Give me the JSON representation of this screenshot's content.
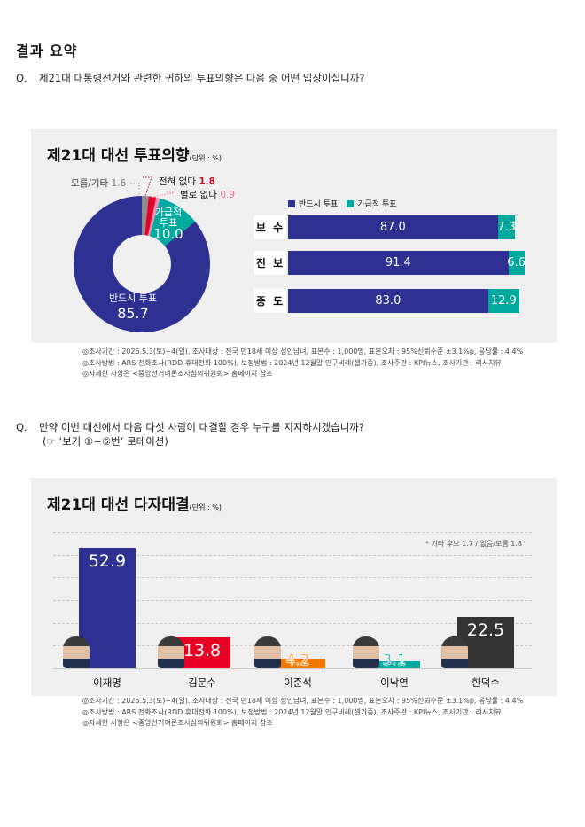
{
  "page_title": "결과 요약",
  "q1": {
    "num": "Q.",
    "text": "제21대 대통령선거와 관련한 귀하의 투표의향은 다음 중 어떤 입장이십니까?"
  },
  "q2": {
    "num": "Q.",
    "text": "만약 이번 대선에서 다음 다섯 사람이 대결할 경우 누구를 지지하시겠습니까?",
    "sub": "(☞ ‘보기 ①~⑤번’ 로테이션)"
  },
  "notes": [
    "◎조사기간 : 2025.5.3(토)~4(일), 조사대상 : 전국 만18세 이상 성인남녀, 표본수 : 1,000명, 표본오차 : 95%신뢰수준 ±3.1%p, 응답률 : 4.4%",
    "◎조사방법 : ARS 전화조사(RDD 휴대전화 100%), 보정방법 : 2024년 12월말 인구비례(셀가중), 조사주관 : KPI뉴스, 조사기관 : 리서치뷰",
    "◎자세한 사항은 <중앙선거여론조사심의위원회> 홈페이지 참조"
  ],
  "chart_data": [
    {
      "type": "pie",
      "title": "제21대 대선 투표의향",
      "unit": "(단위 : %)",
      "slices": [
        {
          "label": "모름/기타",
          "value": 1.6,
          "color": "#8c8c8c"
        },
        {
          "label": "전혀 없다",
          "value": 1.8,
          "color": "#e4002b"
        },
        {
          "label": "별로 없다",
          "value": 0.9,
          "color": "#f28fb1"
        },
        {
          "label": "가급적 투표",
          "value": 10.0,
          "color": "#00a99d"
        },
        {
          "label": "반드시 투표",
          "value": 85.7,
          "color": "#2e3192"
        }
      ]
    },
    {
      "type": "bar",
      "orientation": "horizontal",
      "stacked": true,
      "legend": "top",
      "categories": [
        "보 수",
        "진 보",
        "중 도"
      ],
      "series": [
        {
          "name": "반드시 투표",
          "values": [
            87.0,
            91.4,
            83.0
          ],
          "color": "#2e3192"
        },
        {
          "name": "가급적 투표",
          "values": [
            7.3,
            6.6,
            12.9
          ],
          "color": "#00a99d"
        }
      ]
    },
    {
      "type": "bar",
      "title": "제21대 대선 다자대결",
      "unit": "(단위 : %)",
      "categories": [
        "이재명",
        "김문수",
        "이준석",
        "이낙연",
        "한덕수"
      ],
      "values": [
        52.9,
        13.8,
        4.2,
        3.1,
        22.5
      ],
      "colors": [
        "#2e3192",
        "#e60023",
        "#f07800",
        "#00a99d",
        "#333333"
      ],
      "annotation": "* 기타 후보 1.7 / 없음/모름 1.8",
      "ylim": [
        0,
        60
      ],
      "grid": true
    }
  ]
}
